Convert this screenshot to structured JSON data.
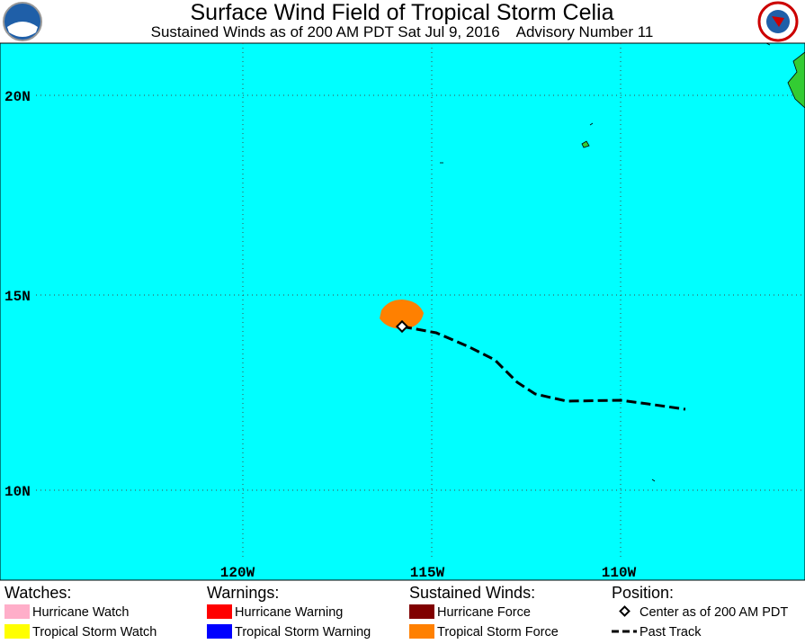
{
  "header": {
    "title": "Surface Wind Field of Tropical Storm Celia",
    "subtitle": "Sustained Winds as of 200 AM PDT Sat Jul 9, 2016    Advisory Number 11"
  },
  "map": {
    "lat_labels": [
      "20N",
      "15N",
      "10N"
    ],
    "lon_labels": [
      "120W",
      "115W",
      "110W"
    ]
  },
  "legend": {
    "sections": [
      {
        "heading": "Watches:",
        "items": [
          {
            "label": "Hurricane Watch",
            "color": "#ffaec9"
          },
          {
            "label": "Tropical Storm Watch",
            "color": "#ffff00"
          }
        ]
      },
      {
        "heading": "Warnings:",
        "items": [
          {
            "label": "Hurricane Warning",
            "color": "#ff0000"
          },
          {
            "label": "Tropical Storm Warning",
            "color": "#0000ff"
          }
        ]
      },
      {
        "heading": "Sustained Winds:",
        "items": [
          {
            "label": "Hurricane Force",
            "color": "#800000"
          },
          {
            "label": "Tropical Storm Force",
            "color": "#ff8000"
          }
        ]
      },
      {
        "heading": "Position:",
        "items": [
          {
            "label": "Center as of 200 AM PDT"
          },
          {
            "label": "Past Track"
          }
        ]
      }
    ]
  }
}
